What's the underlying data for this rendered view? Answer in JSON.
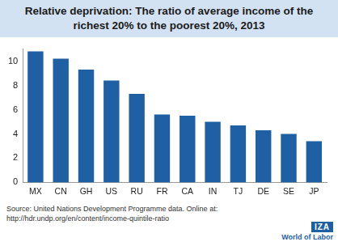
{
  "chart_data": {
    "type": "bar",
    "title": "Relative deprivation: The ratio of average income of the richest 20% to the poorest 20%, 2013",
    "categories": [
      "MX",
      "CN",
      "GH",
      "US",
      "RU",
      "FR",
      "CA",
      "IN",
      "TJ",
      "DE",
      "SE",
      "JP"
    ],
    "values": [
      10.8,
      10.2,
      9.3,
      8.4,
      7.3,
      5.6,
      5.5,
      5.0,
      4.7,
      4.3,
      4.0,
      3.4
    ],
    "color": "#1f5fa3",
    "ylim": [
      0,
      11
    ],
    "yticks": [
      0,
      2,
      4,
      6,
      8,
      10
    ],
    "grid": false,
    "annotations": [
      "Source: United Nations Development Programme data. Online at: http://hdr.undp.org/en/content/income-quintile-ratio",
      "IZA",
      "World of Labor"
    ]
  }
}
